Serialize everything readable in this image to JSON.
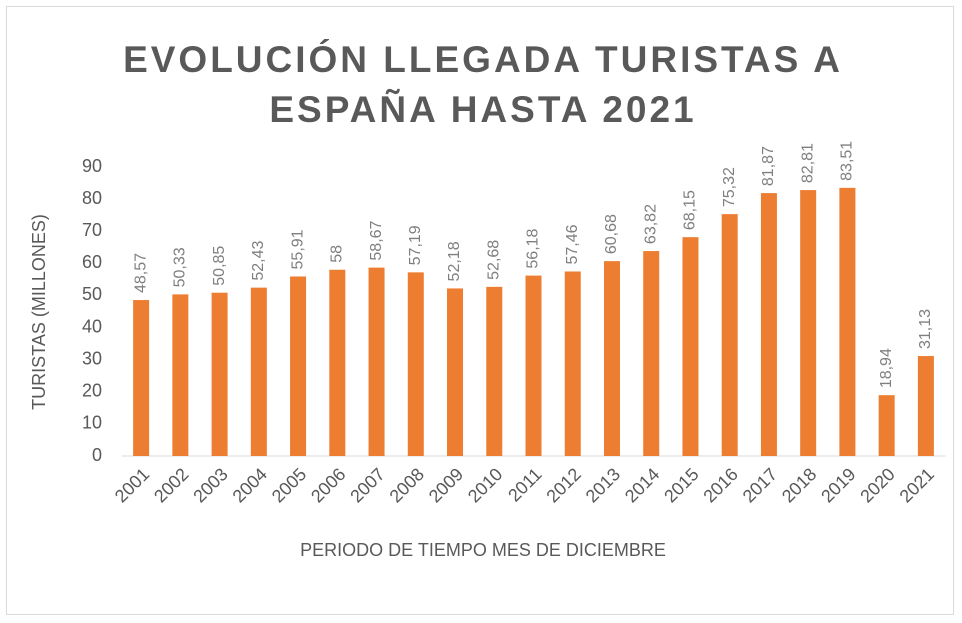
{
  "chart_data": {
    "type": "bar",
    "title": "EVOLUCIÓN LLEGADA TURISTAS A ESPAÑA HASTA 2021",
    "categories": [
      "2001",
      "2002",
      "2003",
      "2004",
      "2005",
      "2006",
      "2007",
      "2008",
      "2009",
      "2010",
      "2011",
      "2012",
      "2013",
      "2014",
      "2015",
      "2016",
      "2017",
      "2018",
      "2019",
      "2020",
      "2021"
    ],
    "values": [
      48.57,
      50.33,
      50.85,
      52.43,
      55.91,
      58,
      58.67,
      57.19,
      52.18,
      52.68,
      56.18,
      57.46,
      60.68,
      63.82,
      68.15,
      75.32,
      81.87,
      82.81,
      83.51,
      18.94,
      31.13
    ],
    "value_labels": [
      "48,57",
      "50,33",
      "50,85",
      "52,43",
      "55,91",
      "58",
      "58,67",
      "57,19",
      "52,18",
      "52,68",
      "56,18",
      "57,46",
      "60,68",
      "63,82",
      "68,15",
      "75,32",
      "81,87",
      "82,81",
      "83,51",
      "18,94",
      "31,13"
    ],
    "color": "#ed7d31",
    "x_label": "PERIODO DE TIEMPO MES DE DICIEMBRE",
    "y_label": "TURISTAS (MILLONES)",
    "ylim": [
      0,
      90
    ],
    "yticks": [
      0,
      10,
      20,
      30,
      40,
      50,
      60,
      70,
      80,
      90
    ],
    "grid": false
  }
}
